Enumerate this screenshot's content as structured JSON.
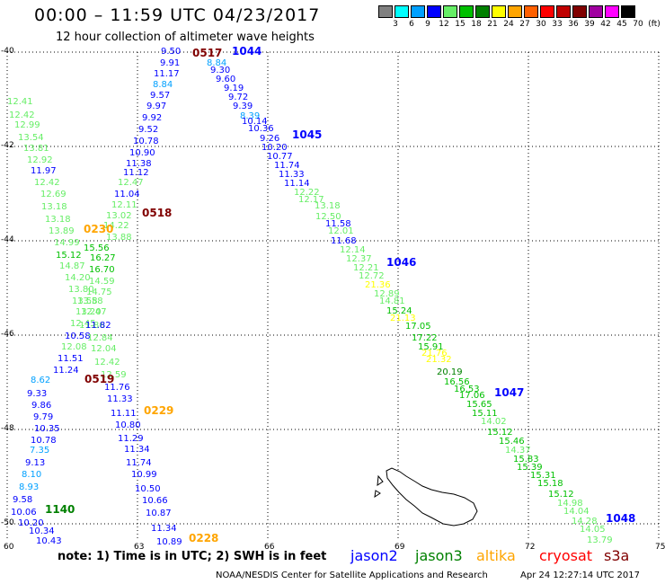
{
  "header": {
    "title": "00:00 – 11:59 UTC 04/23/2017",
    "subtitle": "12 hour collection of altimeter wave heights"
  },
  "legend": {
    "unit": "(ft)",
    "bins": [
      {
        "label": "3",
        "color": "#808080"
      },
      {
        "label": "6",
        "color": "#00ffff"
      },
      {
        "label": "9",
        "color": "#00a0ff"
      },
      {
        "label": "12",
        "color": "#0000ff"
      },
      {
        "label": "15",
        "color": "#66ee66"
      },
      {
        "label": "18",
        "color": "#00c000"
      },
      {
        "label": "21",
        "color": "#008000"
      },
      {
        "label": "24",
        "color": "#ffff00"
      },
      {
        "label": "27",
        "color": "#ffa500"
      },
      {
        "label": "30",
        "color": "#ff6000"
      },
      {
        "label": "33",
        "color": "#ff0000"
      },
      {
        "label": "36",
        "color": "#c00000"
      },
      {
        "label": "39",
        "color": "#800000"
      },
      {
        "label": "42",
        "color": "#a000a0"
      },
      {
        "label": "45",
        "color": "#ff00ff"
      },
      {
        "label": "70",
        "color": "#000000"
      }
    ]
  },
  "axes": {
    "lat_labels": [
      "-40",
      "-42",
      "-44",
      "-46",
      "-48",
      "-50"
    ],
    "lon_labels": [
      "60",
      "63",
      "66",
      "69",
      "72",
      "75"
    ]
  },
  "colors": {
    "grey": "#808080",
    "cyan": "#00ffff",
    "lightblue": "#00a0ff",
    "blue": "#0000ff",
    "lightgreen": "#66ee66",
    "green": "#00c000",
    "darkgreen": "#008000",
    "yellow": "#ffff00",
    "orange": "#ffa500",
    "maroon": "#800000",
    "red": "#ff0000"
  },
  "map_data": {
    "tracks": [
      {
        "points": [
          {
            "v": "12.41",
            "c": "lightgreen"
          },
          {
            "v": "12.42",
            "c": "lightgreen"
          },
          {
            "v": "12.99",
            "c": "lightgreen"
          },
          {
            "v": "13.54",
            "c": "lightgreen"
          },
          {
            "v": "13.81",
            "c": "lightgreen"
          },
          {
            "v": "12.92",
            "c": "lightgreen"
          },
          {
            "v": "11.97",
            "c": "blue"
          },
          {
            "v": "12.42",
            "c": "lightgreen"
          },
          {
            "v": "12.69",
            "c": "lightgreen"
          },
          {
            "v": "13.18",
            "c": "lightgreen"
          },
          {
            "v": "13.18",
            "c": "lightgreen"
          },
          {
            "v": "13.89",
            "c": "lightgreen"
          },
          {
            "v": "14.99",
            "c": "lightgreen"
          },
          {
            "v": "15.12",
            "c": "green"
          },
          {
            "v": "14.87",
            "c": "lightgreen"
          },
          {
            "v": "14.20",
            "c": "lightgreen"
          },
          {
            "v": "13.80",
            "c": "lightgreen"
          },
          {
            "v": "13.58",
            "c": "lightgreen"
          },
          {
            "v": "13.20",
            "c": "lightgreen"
          },
          {
            "v": "12.45",
            "c": "lightgreen"
          },
          {
            "v": "11.86",
            "c": "lightgreen"
          },
          {
            "v": "10.58",
            "c": "blue"
          },
          {
            "v": "12.08",
            "c": "lightgreen"
          },
          {
            "v": "11.51",
            "c": "blue"
          },
          {
            "v": "11.24",
            "c": "blue"
          },
          {
            "v": "8.62",
            "c": "lightblue"
          },
          {
            "v": "9.33",
            "c": "blue"
          },
          {
            "v": "9.86",
            "c": "blue"
          },
          {
            "v": "9.79",
            "c": "blue"
          },
          {
            "v": "10.35",
            "c": "blue"
          },
          {
            "v": "10.78",
            "c": "blue"
          },
          {
            "v": "7.35",
            "c": "lightblue"
          },
          {
            "v": "9.13",
            "c": "blue"
          },
          {
            "v": "8.10",
            "c": "lightblue"
          },
          {
            "v": "8.93",
            "c": "lightblue"
          },
          {
            "v": "9.58",
            "c": "blue"
          },
          {
            "v": "10.06",
            "c": "blue"
          },
          {
            "v": "10.20",
            "c": "blue"
          },
          {
            "v": "10.34",
            "c": "blue"
          },
          {
            "v": "10.43",
            "c": "blue"
          }
        ]
      },
      {
        "points": [
          {
            "v": "9.50",
            "c": "blue"
          },
          {
            "v": "9.91",
            "c": "blue"
          },
          {
            "v": "11.17",
            "c": "blue"
          },
          {
            "v": "8.84",
            "c": "lightblue"
          },
          {
            "v": "9.57",
            "c": "blue"
          },
          {
            "v": "9.97",
            "c": "blue"
          },
          {
            "v": "9.92",
            "c": "blue"
          },
          {
            "v": "9.52",
            "c": "blue"
          },
          {
            "v": "10.78",
            "c": "blue"
          },
          {
            "v": "10.90",
            "c": "blue"
          },
          {
            "v": "11.38",
            "c": "blue"
          },
          {
            "v": "11.12",
            "c": "blue"
          },
          {
            "v": "12.47",
            "c": "lightgreen"
          },
          {
            "v": "11.04",
            "c": "blue"
          },
          {
            "v": "12.11",
            "c": "lightgreen"
          },
          {
            "v": "13.02",
            "c": "lightgreen"
          },
          {
            "v": "14.22",
            "c": "lightgreen"
          },
          {
            "v": "13.88",
            "c": "lightgreen"
          },
          {
            "v": "15.56",
            "c": "green"
          },
          {
            "v": "16.27",
            "c": "green"
          },
          {
            "v": "16.70",
            "c": "green"
          },
          {
            "v": "14.59",
            "c": "lightgreen"
          },
          {
            "v": "14.75",
            "c": "lightgreen"
          },
          {
            "v": "13.58",
            "c": "lightgreen"
          },
          {
            "v": "12.47",
            "c": "lightgreen"
          },
          {
            "v": "11.82",
            "c": "blue"
          },
          {
            "v": "12.84",
            "c": "lightgreen"
          },
          {
            "v": "12.04",
            "c": "lightgreen"
          },
          {
            "v": "12.42",
            "c": "lightgreen"
          },
          {
            "v": "12.59",
            "c": "lightgreen"
          },
          {
            "v": "11.76",
            "c": "blue"
          },
          {
            "v": "11.33",
            "c": "blue"
          },
          {
            "v": "11.11",
            "c": "blue"
          },
          {
            "v": "10.80",
            "c": "blue"
          },
          {
            "v": "11.29",
            "c": "blue"
          },
          {
            "v": "11.34",
            "c": "blue"
          },
          {
            "v": "11.74",
            "c": "blue"
          },
          {
            "v": "10.99",
            "c": "blue"
          },
          {
            "v": "10.50",
            "c": "blue"
          },
          {
            "v": "10.66",
            "c": "blue"
          },
          {
            "v": "10.87",
            "c": "blue"
          },
          {
            "v": "11.34",
            "c": "blue"
          },
          {
            "v": "10.89",
            "c": "blue"
          }
        ]
      },
      {
        "points": [
          {
            "v": "8.84",
            "c": "lightblue"
          },
          {
            "v": "9.30",
            "c": "blue"
          },
          {
            "v": "9.60",
            "c": "blue"
          },
          {
            "v": "9.19",
            "c": "blue"
          },
          {
            "v": "9.72",
            "c": "blue"
          },
          {
            "v": "9.39",
            "c": "blue"
          },
          {
            "v": "8.39",
            "c": "lightblue"
          },
          {
            "v": "10.14",
            "c": "blue"
          },
          {
            "v": "10.36",
            "c": "blue"
          },
          {
            "v": "9.26",
            "c": "blue"
          },
          {
            "v": "10.20",
            "c": "blue"
          },
          {
            "v": "10.77",
            "c": "blue"
          },
          {
            "v": "11.74",
            "c": "blue"
          },
          {
            "v": "11.33",
            "c": "blue"
          },
          {
            "v": "11.14",
            "c": "blue"
          },
          {
            "v": "12.22",
            "c": "lightgreen"
          },
          {
            "v": "12.17",
            "c": "lightgreen"
          },
          {
            "v": "13.18",
            "c": "lightgreen"
          },
          {
            "v": "12.50",
            "c": "lightgreen"
          },
          {
            "v": "11.58",
            "c": "blue"
          },
          {
            "v": "12.01",
            "c": "lightgreen"
          },
          {
            "v": "11.68",
            "c": "blue"
          },
          {
            "v": "12.14",
            "c": "lightgreen"
          },
          {
            "v": "12.37",
            "c": "lightgreen"
          },
          {
            "v": "12.21",
            "c": "lightgreen"
          },
          {
            "v": "12.72",
            "c": "lightgreen"
          },
          {
            "v": "21.36",
            "c": "yellow"
          },
          {
            "v": "12.89",
            "c": "lightgreen"
          },
          {
            "v": "14.81",
            "c": "lightgreen"
          },
          {
            "v": "15.24",
            "c": "green"
          },
          {
            "v": "21.13",
            "c": "yellow"
          },
          {
            "v": "17.05",
            "c": "green"
          },
          {
            "v": "17.22",
            "c": "green"
          },
          {
            "v": "15.91",
            "c": "green"
          },
          {
            "v": "21.76",
            "c": "yellow"
          },
          {
            "v": "21.32",
            "c": "yellow"
          },
          {
            "v": "20.19",
            "c": "darkgreen"
          },
          {
            "v": "16.56",
            "c": "green"
          },
          {
            "v": "16.53",
            "c": "green"
          },
          {
            "v": "17.06",
            "c": "green"
          },
          {
            "v": "15.65",
            "c": "green"
          },
          {
            "v": "15.11",
            "c": "green"
          },
          {
            "v": "14.02",
            "c": "lightgreen"
          },
          {
            "v": "15.12",
            "c": "green"
          },
          {
            "v": "15.46",
            "c": "green"
          },
          {
            "v": "14.37",
            "c": "lightgreen"
          },
          {
            "v": "15.83",
            "c": "green"
          },
          {
            "v": "15.39",
            "c": "green"
          },
          {
            "v": "15.31",
            "c": "green"
          },
          {
            "v": "15.18",
            "c": "green"
          },
          {
            "v": "15.12",
            "c": "green"
          },
          {
            "v": "14.98",
            "c": "lightgreen"
          },
          {
            "v": "14.04",
            "c": "lightgreen"
          },
          {
            "v": "14.28",
            "c": "lightgreen"
          },
          {
            "v": "14.05",
            "c": "lightgreen"
          },
          {
            "v": "13.79",
            "c": "lightgreen"
          }
        ]
      }
    ],
    "time_labels": [
      {
        "t": "0517",
        "c": "maroon"
      },
      {
        "t": "1044",
        "c": "blue"
      },
      {
        "t": "1045",
        "c": "blue"
      },
      {
        "t": "0518",
        "c": "maroon"
      },
      {
        "t": "0230",
        "c": "orange"
      },
      {
        "t": "1046",
        "c": "blue"
      },
      {
        "t": "0519",
        "c": "maroon"
      },
      {
        "t": "0229",
        "c": "orange"
      },
      {
        "t": "1047",
        "c": "blue"
      },
      {
        "t": "1140",
        "c": "darkgreen"
      },
      {
        "t": "0228",
        "c": "orange"
      },
      {
        "t": "1048",
        "c": "blue"
      }
    ]
  },
  "footer": {
    "note": "note:  1) Time is in UTC;  2) SWH is in feet",
    "satellites": [
      {
        "name": "jason2",
        "color": "#0000ff"
      },
      {
        "name": "jason3",
        "color": "#008000"
      },
      {
        "name": "altika",
        "color": "#ffa500"
      },
      {
        "name": "cryosat",
        "color": "#ff0000"
      },
      {
        "name": "s3a",
        "color": "#800000"
      }
    ],
    "credit": "NOAA/NESDIS Center for Satellite Applications and Research",
    "timestamp": "Apr 24 12:27:14 UTC 2017"
  }
}
